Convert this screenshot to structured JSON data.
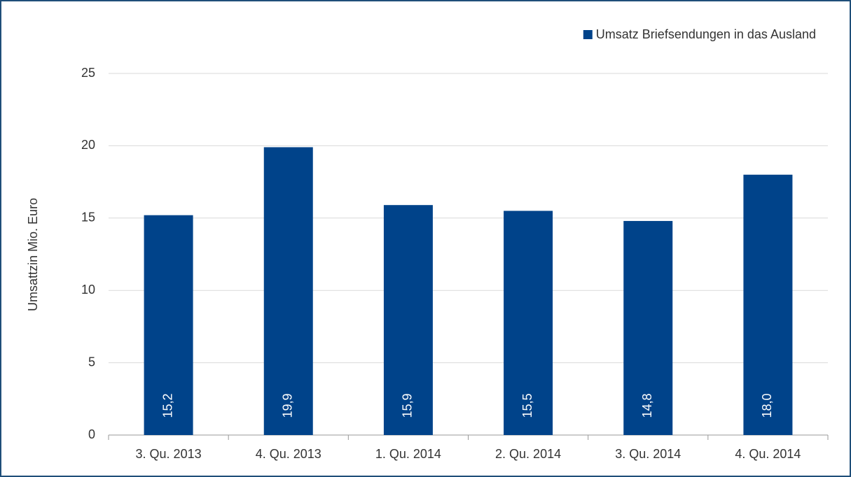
{
  "chart_data": {
    "type": "bar",
    "categories": [
      "3. Qu. 2013",
      "4. Qu. 2013",
      "1. Qu. 2014",
      "2. Qu. 2014",
      "3. Qu. 2014",
      "4. Qu. 2014"
    ],
    "series": [
      {
        "name": "Umsatz Briefsendungen in das Ausland",
        "color": "#00438a",
        "values": [
          15.2,
          19.9,
          15.9,
          15.5,
          14.8,
          18.0
        ],
        "value_labels": [
          "15,2",
          "19,9",
          "15,9",
          "15,5",
          "14,8",
          "18,0"
        ]
      }
    ],
    "y_label": "Umsattzin Mio. Euro",
    "ylim": [
      0,
      25
    ],
    "yticks": [
      0,
      5,
      10,
      15,
      20,
      25
    ],
    "grid": true,
    "legend": "top-right"
  }
}
